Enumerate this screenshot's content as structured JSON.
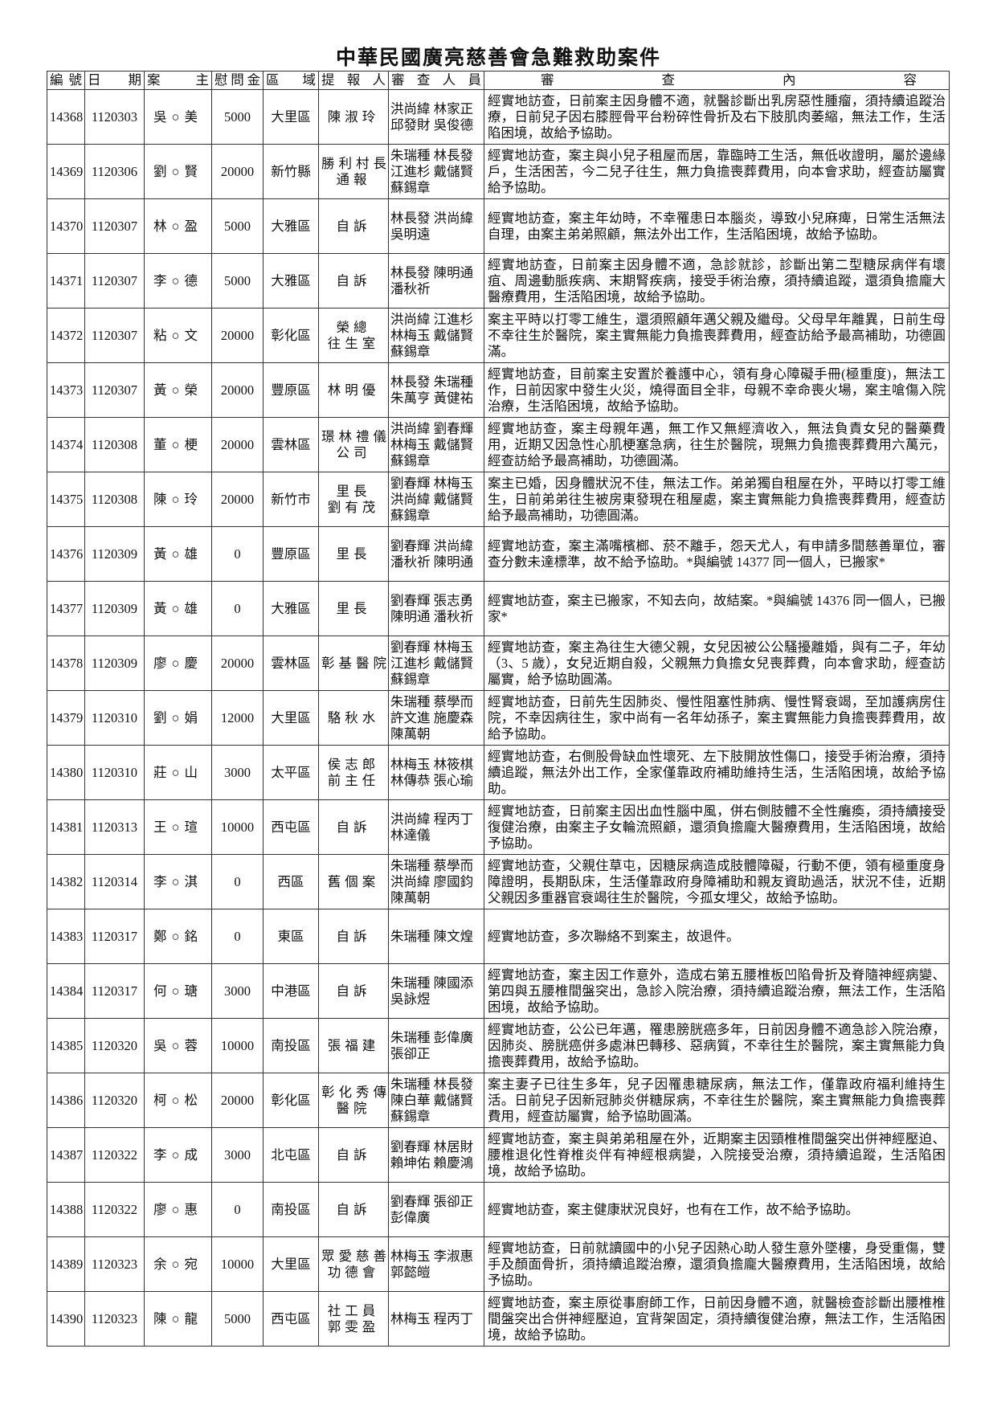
{
  "title": "中華民國廣亮慈善會急難救助案件",
  "headers": [
    "編號",
    "日期",
    "案主",
    "慰問金",
    "區域",
    "提報人",
    "審查人員",
    "審查內容"
  ],
  "rows": [
    {
      "no": "14368",
      "date": "1120303",
      "owner": "吳○美",
      "amount": "5000",
      "area": "大里區",
      "reporter": [
        "陳淑玲"
      ],
      "reviewers": [
        "洪尚緯 林家正",
        "邱發財 吳俊德"
      ],
      "content": "經實地訪查，日前案主因身體不適，就醫診斷出乳房惡性腫瘤，須持續追蹤治療，日前兒子因右膝脛骨平台粉碎性骨折及右下肢肌肉萎縮，無法工作，生活陷困境，故給予協助。"
    },
    {
      "no": "14369",
      "date": "1120306",
      "owner": "劉○賢",
      "amount": "20000",
      "area": "新竹縣",
      "reporter": [
        "勝利村長",
        "通報"
      ],
      "reviewers": [
        "朱瑞種 林長發",
        "江進杉 戴儲賢",
        "蘇錫章"
      ],
      "content": "經實地訪查，案主與小兒子租屋而居，靠臨時工生活，無低收證明，屬於邊緣戶，生活困苦，今二兒子往生，無力負擔喪葬費用，向本會求助，經查訪屬實給予協助。"
    },
    {
      "no": "14370",
      "date": "1120307",
      "owner": "林○盈",
      "amount": "5000",
      "area": "大雅區",
      "reporter": [
        "自訴"
      ],
      "reviewers": [
        "林長發 洪尚緯",
        "吳明遠"
      ],
      "content": "經實地訪查，案主年幼時，不幸罹患日本腦炎，導致小兒麻痺，日常生活無法自理，由案主弟弟照顧，無法外出工作，生活陷困境，故給予協助。"
    },
    {
      "no": "14371",
      "date": "1120307",
      "owner": "李○德",
      "amount": "5000",
      "area": "大雅區",
      "reporter": [
        "自訴"
      ],
      "reviewers": [
        "林長發 陳明通",
        "潘秋祈"
      ],
      "content": "經實地訪查，日前案主因身體不適，急診就診，診斷出第二型糖尿病伴有壞疽、周邊動脈疾病、末期腎疾病，接受手術治療，須持續追蹤，還須負擔龐大醫療費用，生活陷困境，故給予協助。"
    },
    {
      "no": "14372",
      "date": "1120307",
      "owner": "粘○文",
      "amount": "20000",
      "area": "彰化區",
      "reporter": [
        "榮總",
        "往生室"
      ],
      "reviewers": [
        "洪尚緯 江進杉",
        "林梅玉 戴儲賢",
        "蘇錫章"
      ],
      "content": "案主平時以打零工維生，還須照顧年邁父親及繼母。父母早年離異，日前生母不幸往生於醫院，案主實無能力負擔喪葬費用，經查訪給予最高補助，功德圓滿。"
    },
    {
      "no": "14373",
      "date": "1120307",
      "owner": "黃○榮",
      "amount": "20000",
      "area": "豐原區",
      "reporter": [
        "林明優"
      ],
      "reviewers": [
        "林長發 朱瑞種",
        "朱萬亨 黃健祐"
      ],
      "content": "經實地訪查，目前案主安置於養護中心，領有身心障礙手冊(極重度)，無法工作，日前因家中發生火災，燒得面目全非，母親不幸命喪火場，案主嗆傷入院治療，生活陷困境，故給予協助。"
    },
    {
      "no": "14374",
      "date": "1120308",
      "owner": "董○梗",
      "amount": "20000",
      "area": "雲林區",
      "reporter": [
        "璟林禮儀",
        "公司"
      ],
      "reviewers": [
        "洪尚緯 劉春輝",
        "林梅玉 戴儲賢",
        "蘇錫章"
      ],
      "content": "經實地訪查，案主母親年邁，無工作又無經濟收入，無法負責女兒的醫藥費用，近期又因急性心肌梗塞急病，往生於醫院，現無力負擔喪葬費用六萬元，經查訪給予最高補助，功德圓滿。"
    },
    {
      "no": "14375",
      "date": "1120308",
      "owner": "陳○玲",
      "amount": "20000",
      "area": "新竹市",
      "reporter": [
        "里長",
        "劉有茂"
      ],
      "reviewers": [
        "劉春輝 林梅玉",
        "洪尚緯 戴儲賢",
        "蘇錫章"
      ],
      "content": "案主已婚，因身體狀況不佳，無法工作。弟弟獨自租屋在外，平時以打零工維生，日前弟弟往生被房東發現在租屋處，案主實無能力負擔喪葬費用，經查訪給予最高補助，功德圓滿。"
    },
    {
      "no": "14376",
      "date": "1120309",
      "owner": "黃○雄",
      "amount": "0",
      "area": "豐原區",
      "reporter": [
        "里長"
      ],
      "reviewers": [
        "劉春輝 洪尚緯",
        "潘秋祈 陳明通"
      ],
      "content": "經實地訪查，案主滿嘴檳榔、菸不離手，怨天尤人，有申請多間慈善單位，審查分數未達標準，故不給予協助。*與編號 14377 同一個人，已搬家*"
    },
    {
      "no": "14377",
      "date": "1120309",
      "owner": "黃○雄",
      "amount": "0",
      "area": "大雅區",
      "reporter": [
        "里長"
      ],
      "reviewers": [
        "劉春輝 張志勇",
        "陳明通 潘秋祈"
      ],
      "content": "經實地訪查，案主已搬家，不知去向，故結案。*與編號 14376 同一個人，已搬家*"
    },
    {
      "no": "14378",
      "date": "1120309",
      "owner": "廖○慶",
      "amount": "20000",
      "area": "雲林區",
      "reporter": [
        "彰基醫院"
      ],
      "reviewers": [
        "劉春輝 林梅玉",
        "江進杉 戴儲賢",
        "蘇錫章"
      ],
      "content": "經實地訪查，案主為往生大德父親，女兒因被公公騷擾離婚，與有二子，年幼（3、5 歲），女兒近期自殺，父親無力負擔女兒喪葬費，向本會求助，經查訪屬實，給予協助圓滿。"
    },
    {
      "no": "14379",
      "date": "1120310",
      "owner": "劉○娟",
      "amount": "12000",
      "area": "大里區",
      "reporter": [
        "駱秋水"
      ],
      "reviewers": [
        "朱瑞種 蔡學而",
        "許文進 施慶森",
        "陳萬朝"
      ],
      "content": "經實地訪查，日前先生因肺炎、慢性阻塞性肺病、慢性腎衰竭，至加護病房住院，不幸因病往生，家中尚有一名年幼孫子，案主實無能力負擔喪葬費用，故給予協助。"
    },
    {
      "no": "14380",
      "date": "1120310",
      "owner": "莊○山",
      "amount": "3000",
      "area": "太平區",
      "reporter": [
        "侯志郎",
        "前主任"
      ],
      "reviewers": [
        "林梅玉 林筱棋",
        "林傳恭 張心瑜"
      ],
      "content": "經實地訪查，右側股骨缺血性壞死、左下肢開放性傷口，接受手術治療，須持續追蹤，無法外出工作，全家僅靠政府補助維持生活，生活陷困境，故給予協助。"
    },
    {
      "no": "14381",
      "date": "1120313",
      "owner": "王○瑄",
      "amount": "10000",
      "area": "西屯區",
      "reporter": [
        "自訴"
      ],
      "reviewers": [
        "洪尚緯 程丙丁",
        "林達儀"
      ],
      "content": "經實地訪查，日前案主因出血性腦中風，併右側肢體不全性癱瘓，須持續接受復健治療，由案主子女輪流照顧，還須負擔龐大醫療費用，生活陷困境，故給予協助。"
    },
    {
      "no": "14382",
      "date": "1120314",
      "owner": "李○淇",
      "amount": "0",
      "area": "西區",
      "reporter": [
        "舊個案"
      ],
      "reviewers": [
        "朱瑞種 蔡學而",
        "洪尚緯 廖國鈞",
        "陳萬朝"
      ],
      "content": "經實地訪查，父親住草屯，因糖尿病造成肢體障礙，行動不便，領有極重度身障證明，長期臥床，生活僅靠政府身障補助和親友資助過活，狀況不佳，近期父親因多重器官衰竭往生於醫院，今孤女埋父，故給予協助。"
    },
    {
      "no": "14383",
      "date": "1120317",
      "owner": "鄭○銘",
      "amount": "0",
      "area": "東區",
      "reporter": [
        "自訴"
      ],
      "reviewers": [
        "朱瑞種 陳文煌"
      ],
      "content": "經實地訪查，多次聯絡不到案主，故退件。"
    },
    {
      "no": "14384",
      "date": "1120317",
      "owner": "何○瑭",
      "amount": "3000",
      "area": "中港區",
      "reporter": [
        "自訴"
      ],
      "reviewers": [
        "朱瑞種 陳國添",
        "吳詠煜"
      ],
      "content": "經實地訪查，案主因工作意外，造成右第五腰椎板凹陷骨折及脊隨神經病變、第四與五腰椎間盤突出，急診入院治療，須持續追蹤治療，無法工作，生活陷困境，故給予協助。"
    },
    {
      "no": "14385",
      "date": "1120320",
      "owner": "吳○蓉",
      "amount": "10000",
      "area": "南投區",
      "reporter": [
        "張福建"
      ],
      "reviewers": [
        "朱瑞種 彭偉廣",
        "張卻正"
      ],
      "content": "經實地訪查，公公已年邁，罹患膀胱癌多年，日前因身體不適急診入院治療，因肺炎、膀胱癌併多處淋巴轉移、惡病質，不幸往生於醫院，案主實無能力負擔喪葬費用，故給予協助。"
    },
    {
      "no": "14386",
      "date": "1120320",
      "owner": "柯○松",
      "amount": "20000",
      "area": "彰化區",
      "reporter": [
        "彰化秀傳",
        "醫院"
      ],
      "reviewers": [
        "朱瑞種 林長發",
        "陳白華 戴儲賢",
        "蘇錫章"
      ],
      "content": "案主妻子已往生多年，兒子因罹患糖尿病，無法工作，僅靠政府福利維持生活。日前兒子因新冠肺炎併糖尿病，不幸往生於醫院，案主實無能力負擔喪葬費用，經查訪屬實，給予協助圓滿。"
    },
    {
      "no": "14387",
      "date": "1120322",
      "owner": "李○成",
      "amount": "3000",
      "area": "北屯區",
      "reporter": [
        "自訴"
      ],
      "reviewers": [
        "劉春輝 林居財",
        "賴坤佑 賴慶鴻"
      ],
      "content": "經實地訪查，案主與弟弟租屋在外，近期案主因頸椎椎間盤突出併神經壓迫、腰椎退化性脊椎炎伴有神經根病變，入院接受治療，須持續追蹤，生活陷困境，故給予協助。"
    },
    {
      "no": "14388",
      "date": "1120322",
      "owner": "廖○惠",
      "amount": "0",
      "area": "南投區",
      "reporter": [
        "自訴"
      ],
      "reviewers": [
        "劉春輝 張卻正",
        "彭偉廣"
      ],
      "content": "經實地訪查，案主健康狀況良好，也有在工作，故不給予協助。"
    },
    {
      "no": "14389",
      "date": "1120323",
      "owner": "余○宛",
      "amount": "10000",
      "area": "大里區",
      "reporter": [
        "眾愛慈善",
        "功德會"
      ],
      "reviewers": [
        "林梅玉 李淑惠",
        "郭懿皚"
      ],
      "content": "經實地訪查，日前就讀國中的小兒子因熱心助人發生意外墜樓，身受重傷，雙手及顏面骨折，須持續追蹤治療，還須負擔龐大醫療費用，生活陷困境，故給予協助。"
    },
    {
      "no": "14390",
      "date": "1120323",
      "owner": "陳○龍",
      "amount": "5000",
      "area": "西屯區",
      "reporter": [
        "社工員",
        "郭雯盈"
      ],
      "reviewers": [
        "林梅玉 程丙丁"
      ],
      "content": "經實地訪查，案主原從事廚師工作，日前因身體不適，就醫檢查診斷出腰椎椎間盤突出合併神經壓迫，宜背架固定，須持續復健治療，無法工作，生活陷困境，故給予協助。"
    }
  ]
}
